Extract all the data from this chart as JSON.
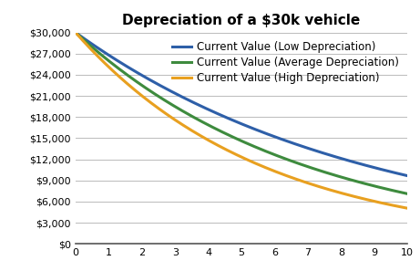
{
  "title": "Depreciation of a $30k vehicle",
  "initial_value": 30000,
  "low_rate": 0.107,
  "avg_rate": 0.134,
  "high_rate": 0.163,
  "x_min": 0,
  "x_max": 10,
  "y_min": 0,
  "y_max": 30000,
  "y_ticks": [
    0,
    3000,
    6000,
    9000,
    12000,
    15000,
    18000,
    21000,
    24000,
    27000,
    30000
  ],
  "x_ticks": [
    0,
    1,
    2,
    3,
    4,
    5,
    6,
    7,
    8,
    9,
    10
  ],
  "color_low": "#2E5FA8",
  "color_avg": "#3E8B3E",
  "color_high": "#E8A020",
  "label_low": "Current Value (Low Depreciation)",
  "label_avg": "Current Value (Average Depreciation)",
  "label_high": "Current Value (High Depreciation)",
  "line_width": 2.2,
  "background_color": "#FFFFFF",
  "grid_color": "#BBBBBB",
  "title_fontsize": 11,
  "legend_fontsize": 8.5,
  "tick_fontsize": 8
}
